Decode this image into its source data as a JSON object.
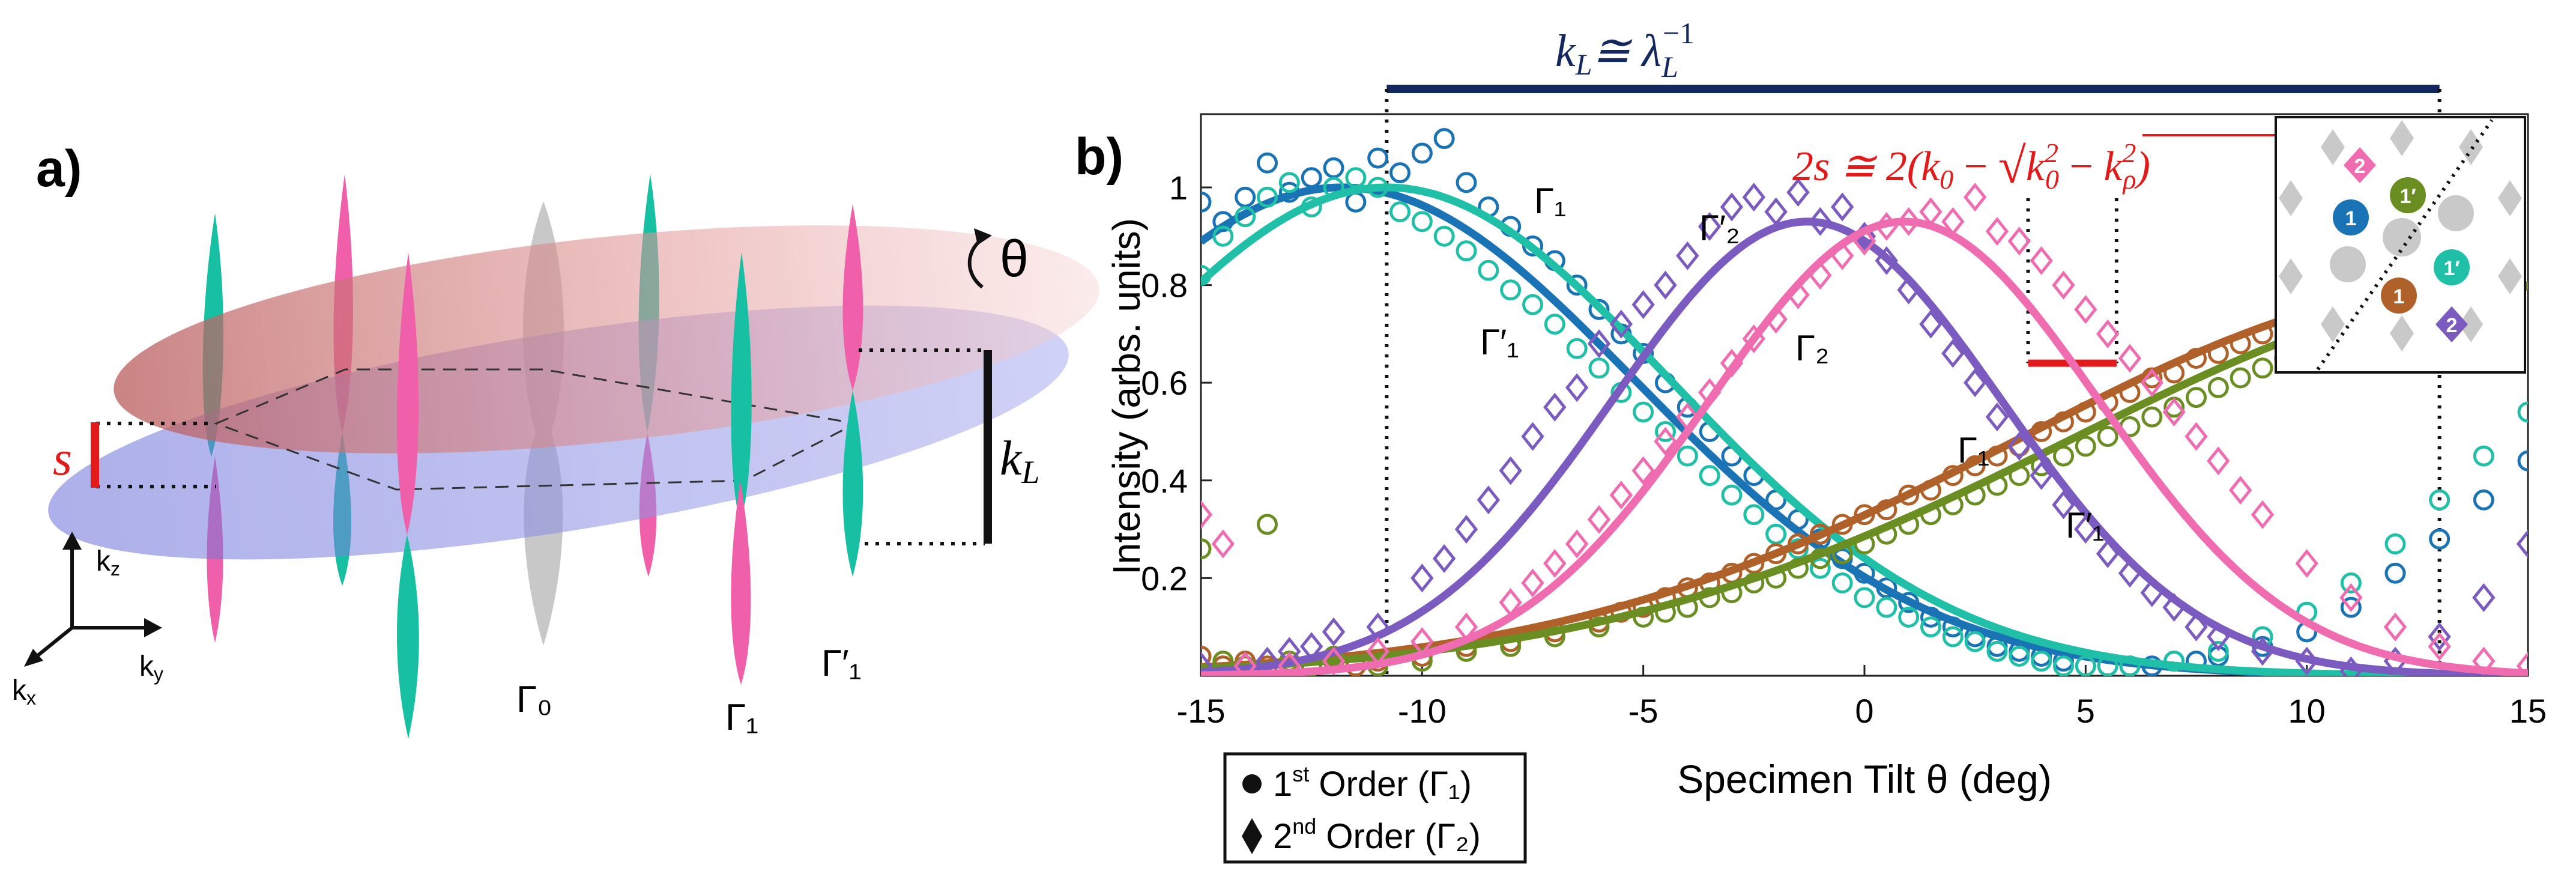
{
  "panel_a": {
    "label": "a)",
    "s_label": "s",
    "kl_label": "k",
    "kl_sub": "L",
    "theta_label": "θ",
    "gamma0_label": "Γ₀",
    "gamma1_label": "Γ₁",
    "gamma1p_label": "Γ′₁",
    "axis_kz": "k",
    "axis_kz_sub": "z",
    "axis_ky": "k",
    "axis_ky_sub": "y",
    "axis_kx": "k",
    "axis_kx_sub": "x"
  },
  "panel_b": {
    "label": "b)",
    "kl_formula_lhs": "k",
    "kl_formula_lhs_sub": "L",
    "kl_formula_rhs": "≅ λ",
    "kl_formula_rhs_sub": "L",
    "kl_formula_rhs_sup": "−1",
    "s_formula": "2s ≅ 2(k₀ − √(k₀² − kᵨ²))",
    "s_formula_lhs": "2s ≅ 2(",
    "s_formula_k0": "k",
    "s_formula_k0_sub": "0",
    "s_formula_minus": " − ",
    "s_formula_root_k0": "k",
    "s_formula_root_k0_sub": "0",
    "s_formula_root_k0_sup": "2",
    "s_formula_root_minus": " − ",
    "s_formula_root_krho": "k",
    "s_formula_root_krho_sub": "ρ",
    "s_formula_root_krho_sup": "2",
    "s_formula_close": ")",
    "inset_labels": [
      "2",
      "1′",
      "1",
      "1′",
      "1",
      "2"
    ],
    "curve_labels": {
      "g1_blue": "Γ₁",
      "g1p_teal": "Γ′₁",
      "g2p_purple": "Γ′₂",
      "g2_pink": "Γ₂",
      "g1_brown": "Γ₁",
      "g1p_olive": "Γ′₁"
    },
    "legend": {
      "first_prefix": "1",
      "first_sup": "st",
      "first_suffix": " Order (Γ₁)",
      "second_prefix": "2",
      "second_sup": "nd",
      "second_suffix": " Order (Γ₂)"
    }
  },
  "chart_data": {
    "type": "scatter",
    "title": "",
    "xlabel": "Specimen Tilt θ (deg)",
    "ylabel": "Intensity (arbs. units)",
    "xlim": [
      -15,
      15
    ],
    "ylim": [
      0,
      1.15
    ],
    "xticks": [
      -15,
      -10,
      -5,
      0,
      5,
      10,
      15
    ],
    "yticks": [
      0.2,
      0.4,
      0.6,
      0.8,
      1
    ],
    "guide_lines_x": [
      -10.8,
      3.7,
      5.7,
      13.0
    ],
    "s_marker": {
      "x_from": 3.7,
      "x_to": 5.7,
      "y": 0.64
    },
    "kl_bar": {
      "x_from": -10.8,
      "x_to": 13.0
    },
    "series": [
      {
        "name": "Γ₁ (1st order)",
        "color": "#1a73b5",
        "marker": "circle",
        "fit": {
          "amp": 1.0,
          "center": -11.8,
          "sigma": 6.6
        },
        "x": [
          -15,
          -14.5,
          -14,
          -13.5,
          -13,
          -12.5,
          -12,
          -11.5,
          -11,
          -10.5,
          -10,
          -9.5,
          -9,
          -8.5,
          -8,
          -7.5,
          -7,
          -6.5,
          -6,
          -5.5,
          -5,
          -4.5,
          -4,
          -3.5,
          -3,
          -2.5,
          -2,
          -1.5,
          -1,
          -0.5,
          0,
          0.5,
          1,
          1.5,
          2,
          2.5,
          3,
          3.5,
          4,
          4.5,
          5,
          5.5,
          6,
          6.5,
          7,
          7.5,
          8,
          9,
          10,
          11,
          12,
          13,
          14,
          15
        ],
        "y": [
          0.97,
          0.93,
          0.98,
          1.05,
          0.99,
          1.02,
          1.04,
          0.97,
          1.06,
          1.03,
          1.07,
          1.1,
          1.01,
          0.96,
          0.92,
          0.88,
          0.85,
          0.8,
          0.75,
          0.7,
          0.66,
          0.6,
          0.55,
          0.5,
          0.45,
          0.41,
          0.36,
          0.32,
          0.28,
          0.24,
          0.21,
          0.18,
          0.15,
          0.12,
          0.1,
          0.08,
          0.06,
          0.05,
          0.04,
          0.03,
          0.02,
          0.02,
          0.02,
          0.02,
          0.03,
          0.03,
          0.04,
          0.06,
          0.09,
          0.14,
          0.21,
          0.28,
          0.36,
          0.44
        ]
      },
      {
        "name": "Γ′₁ (1st order)",
        "color": "#1fbfa8",
        "marker": "circle",
        "fit": {
          "amp": 1.0,
          "center": -10.8,
          "sigma": 6.4
        },
        "x": [
          -15,
          -14.5,
          -14,
          -13.5,
          -13,
          -12.5,
          -12,
          -11.5,
          -11,
          -10.5,
          -10,
          -9.5,
          -9,
          -8.5,
          -8,
          -7.5,
          -7,
          -6.5,
          -6,
          -5.5,
          -5,
          -4.5,
          -4,
          -3.5,
          -3,
          -2.5,
          -2,
          -1.5,
          -1,
          -0.5,
          0,
          0.5,
          1,
          1.5,
          2,
          2.5,
          3,
          3.5,
          4,
          4.5,
          5,
          5.5,
          6,
          7,
          8,
          9,
          10,
          11,
          12,
          13,
          14,
          15
        ],
        "y": [
          0.82,
          0.9,
          0.94,
          0.98,
          1.01,
          0.96,
          1.0,
          1.02,
          1.0,
          0.95,
          0.93,
          0.9,
          0.87,
          0.83,
          0.79,
          0.76,
          0.72,
          0.67,
          0.63,
          0.58,
          0.54,
          0.5,
          0.45,
          0.41,
          0.37,
          0.33,
          0.29,
          0.26,
          0.22,
          0.19,
          0.16,
          0.14,
          0.12,
          0.1,
          0.08,
          0.07,
          0.05,
          0.04,
          0.03,
          0.02,
          0.02,
          0.02,
          0.02,
          0.03,
          0.05,
          0.08,
          0.13,
          0.19,
          0.27,
          0.36,
          0.45,
          0.54
        ]
      },
      {
        "name": "Γ₁ (1st order, rising)",
        "color": "#b0612a",
        "marker": "circle",
        "fit": {
          "amp": 0.8,
          "center": 14.0,
          "sigma": 10.5
        },
        "x": [
          -15,
          -14.5,
          -14,
          -13.5,
          -13,
          -12.5,
          -12,
          -11.5,
          -11,
          -10,
          -9,
          -8,
          -7,
          -6,
          -5.5,
          -5,
          -4.5,
          -4,
          -3.5,
          -3,
          -2.5,
          -2,
          -1.5,
          -1,
          -0.5,
          0,
          0.5,
          1,
          1.5,
          2,
          2.5,
          3,
          3.5,
          4,
          4.5,
          5,
          5.5,
          6,
          6.5,
          7,
          7.5,
          8,
          8.5,
          9,
          9.5,
          10
        ],
        "y": [
          0.04,
          0.02,
          0.03,
          0.02,
          0.02,
          0.02,
          0.03,
          0.02,
          0.03,
          0.04,
          0.06,
          0.07,
          0.09,
          0.11,
          0.13,
          0.14,
          0.16,
          0.18,
          0.19,
          0.21,
          0.23,
          0.25,
          0.27,
          0.29,
          0.31,
          0.33,
          0.34,
          0.37,
          0.38,
          0.41,
          0.43,
          0.45,
          0.47,
          0.5,
          0.52,
          0.54,
          0.56,
          0.58,
          0.61,
          0.62,
          0.65,
          0.66,
          0.68,
          0.7,
          0.72,
          0.74
        ]
      },
      {
        "name": "Γ′₁ (1st order, rising)",
        "color": "#6b8e23",
        "marker": "circle",
        "fit": {
          "amp": 0.8,
          "center": 15.5,
          "sigma": 10.8
        },
        "x": [
          -15,
          -14.5,
          -14,
          -13.5,
          -13,
          -12.5,
          -12,
          -11,
          -10,
          -9,
          -8,
          -7,
          -6,
          -5,
          -4.5,
          -4,
          -3.5,
          -3,
          -2.5,
          -2,
          -1.5,
          -1,
          -0.5,
          0,
          0.5,
          1,
          1.5,
          2,
          2.5,
          3,
          3.5,
          4,
          4.5,
          5,
          5.5,
          6,
          6.5,
          7,
          7.5,
          8,
          8.5,
          9,
          9.5,
          10
        ],
        "y": [
          0.26,
          0.03,
          0.02,
          0.31,
          0.03,
          0.02,
          0.04,
          0.02,
          0.03,
          0.05,
          0.06,
          0.08,
          0.1,
          0.12,
          0.13,
          0.14,
          0.16,
          0.17,
          0.19,
          0.2,
          0.22,
          0.24,
          0.25,
          0.27,
          0.29,
          0.31,
          0.33,
          0.35,
          0.37,
          0.39,
          0.41,
          0.43,
          0.45,
          0.47,
          0.49,
          0.51,
          0.53,
          0.55,
          0.57,
          0.59,
          0.61,
          0.63,
          0.65,
          0.67
        ]
      },
      {
        "name": "Γ′₂ (2nd order)",
        "color": "#7b5bbf",
        "marker": "diamond",
        "fit": {
          "amp": 0.93,
          "center": -1.3,
          "sigma": 4.4
        },
        "x": [
          -15,
          -14,
          -13.5,
          -13,
          -12.5,
          -12,
          -11,
          -10,
          -9.5,
          -9,
          -8.5,
          -8,
          -7.5,
          -7,
          -6.5,
          -6,
          -5.5,
          -5,
          -4.5,
          -4,
          -3.5,
          -3,
          -2.5,
          -2,
          -1.5,
          -1,
          -0.5,
          0,
          0.5,
          1,
          1.5,
          2,
          2.5,
          3,
          3.5,
          4,
          4.5,
          5,
          5.5,
          6,
          6.5,
          7,
          7.5,
          8,
          9,
          10,
          11,
          12,
          13,
          14,
          15
        ],
        "y": [
          0.02,
          0.02,
          0.03,
          0.05,
          0.06,
          0.09,
          0.1,
          0.2,
          0.24,
          0.3,
          0.36,
          0.42,
          0.49,
          0.55,
          0.59,
          0.68,
          0.72,
          0.76,
          0.8,
          0.86,
          0.92,
          0.96,
          0.98,
          0.95,
          0.99,
          0.93,
          0.96,
          0.9,
          0.85,
          0.79,
          0.72,
          0.66,
          0.6,
          0.53,
          0.47,
          0.41,
          0.35,
          0.3,
          0.25,
          0.21,
          0.17,
          0.14,
          0.1,
          0.08,
          0.05,
          0.03,
          0.01,
          0.03,
          0.08,
          0.16,
          0.27
        ]
      },
      {
        "name": "Γ₂ (2nd order)",
        "color": "#f06cb0",
        "marker": "diamond",
        "fit": {
          "amp": 0.93,
          "center": 0.9,
          "sigma": 4.4
        },
        "x": [
          -15,
          -14.5,
          -14,
          -13,
          -12,
          -11,
          -10,
          -9,
          -8,
          -7.5,
          -7,
          -6.5,
          -6,
          -5.5,
          -5,
          -4.5,
          -4,
          -3.5,
          -3,
          -2.5,
          -2,
          -1.5,
          -1,
          -0.5,
          0,
          0.5,
          1,
          1.5,
          2,
          2.5,
          3,
          3.5,
          4,
          4.5,
          5,
          5.5,
          6,
          6.5,
          7,
          7.5,
          8,
          8.5,
          9,
          10,
          11,
          12,
          13,
          14,
          15
        ],
        "y": [
          0.33,
          0.27,
          0.02,
          0.02,
          0.03,
          0.05,
          0.07,
          0.1,
          0.15,
          0.19,
          0.23,
          0.27,
          0.32,
          0.37,
          0.42,
          0.48,
          0.53,
          0.58,
          0.64,
          0.69,
          0.73,
          0.78,
          0.82,
          0.86,
          0.89,
          0.92,
          0.93,
          0.95,
          0.93,
          0.98,
          0.91,
          0.89,
          0.85,
          0.8,
          0.75,
          0.7,
          0.65,
          0.6,
          0.54,
          0.49,
          0.44,
          0.38,
          0.33,
          0.23,
          0.16,
          0.1,
          0.06,
          0.03,
          0.02
        ]
      }
    ]
  }
}
